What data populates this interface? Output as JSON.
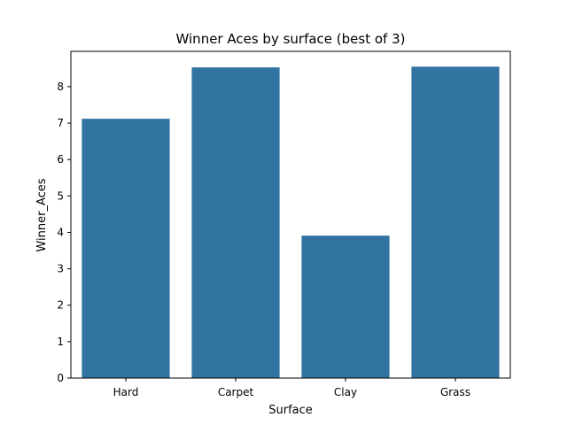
{
  "chart_data": {
    "type": "bar",
    "title": "Winner Aces by surface (best of 3)",
    "xlabel": "Surface",
    "ylabel": "Winner_Aces",
    "categories": [
      "Hard",
      "Carpet",
      "Clay",
      "Grass"
    ],
    "values": [
      7.12,
      8.53,
      3.91,
      8.55
    ],
    "ylim": [
      0,
      8.97
    ],
    "yticks": [
      "0",
      "1",
      "2",
      "3",
      "4",
      "5",
      "6",
      "7",
      "8"
    ],
    "grid": false,
    "bar_color": "#3274a1"
  }
}
